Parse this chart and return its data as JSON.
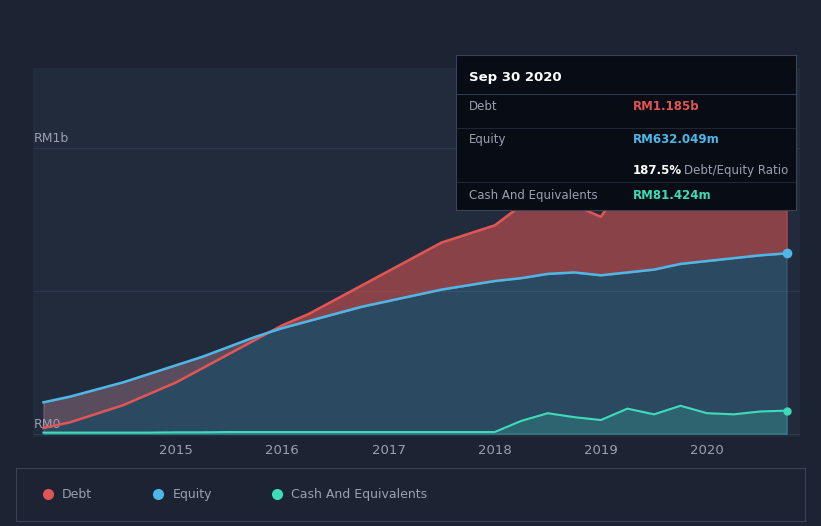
{
  "bg_color": "#1c2333",
  "plot_bg_color": "#222b3c",
  "grid_color": "#2e3a50",
  "text_color": "#9aa0b0",
  "ylabel_text": "RM1b",
  "y0_text": "RM0",
  "x_ticks": [
    2015,
    2016,
    2017,
    2018,
    2019,
    2020
  ],
  "debt_color": "#e05555",
  "equity_color": "#4db8e8",
  "cash_color": "#3ddbb8",
  "tooltip_bg": "#080c14",
  "tooltip_border": "#3a4258",
  "tooltip_title": "Sep 30 2020",
  "tooltip_debt_label": "Debt",
  "tooltip_debt_value": "RM1.185b",
  "tooltip_equity_label": "Equity",
  "tooltip_equity_value": "RM632.049m",
  "tooltip_ratio": "187.5%",
  "tooltip_ratio_text": "Debt/Equity Ratio",
  "tooltip_cash_label": "Cash And Equivalents",
  "tooltip_cash_value": "RM81.424m",
  "years": [
    2013.75,
    2014.0,
    2014.25,
    2014.5,
    2014.75,
    2015.0,
    2015.25,
    2015.5,
    2015.75,
    2016.0,
    2016.25,
    2016.5,
    2016.75,
    2017.0,
    2017.25,
    2017.5,
    2017.75,
    2018.0,
    2018.25,
    2018.5,
    2018.75,
    2019.0,
    2019.25,
    2019.5,
    2019.75,
    2020.0,
    2020.25,
    2020.5,
    2020.75
  ],
  "debt": [
    0.02,
    0.04,
    0.07,
    0.1,
    0.14,
    0.18,
    0.23,
    0.28,
    0.33,
    0.38,
    0.42,
    0.47,
    0.52,
    0.57,
    0.62,
    0.67,
    0.7,
    0.73,
    0.8,
    0.86,
    0.8,
    0.76,
    0.9,
    1.04,
    1.08,
    1.13,
    1.17,
    1.19,
    1.185
  ],
  "equity": [
    0.11,
    0.13,
    0.155,
    0.18,
    0.21,
    0.24,
    0.27,
    0.305,
    0.34,
    0.37,
    0.395,
    0.42,
    0.445,
    0.465,
    0.485,
    0.505,
    0.52,
    0.535,
    0.545,
    0.56,
    0.565,
    0.555,
    0.565,
    0.575,
    0.595,
    0.605,
    0.615,
    0.625,
    0.632
  ],
  "cash": [
    0.004,
    0.004,
    0.004,
    0.004,
    0.004,
    0.005,
    0.005,
    0.006,
    0.006,
    0.006,
    0.006,
    0.006,
    0.006,
    0.006,
    0.006,
    0.006,
    0.006,
    0.006,
    0.045,
    0.072,
    0.058,
    0.048,
    0.088,
    0.068,
    0.098,
    0.072,
    0.068,
    0.078,
    0.081
  ],
  "ylim_max": 1.28,
  "ylim_min": -0.01,
  "xlim_min": 2013.65,
  "xlim_max": 2020.88,
  "legend_debt": "Debt",
  "legend_equity": "Equity",
  "legend_cash": "Cash And Equivalents"
}
